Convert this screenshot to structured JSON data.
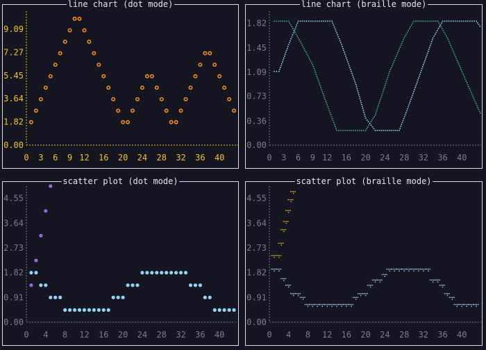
{
  "colors": {
    "background": "#161522",
    "border": "#dcdce4",
    "title": "#e6e6ee",
    "axis_yellow": "#f2c12e",
    "axis_gray": "#7c7c88",
    "orange": "#f08c22",
    "green": "#3fae86",
    "blue": "#8fd4f4",
    "lightblue": "#9fd8f4",
    "purple": "#9a66e2",
    "gold": "#f0b42e"
  },
  "panels": [
    {
      "id": "tl",
      "title": "line chart (dot mode)",
      "mode": "dot",
      "axis_color": "yellow",
      "chart_data": {
        "type": "line",
        "xlim": [
          0,
          44
        ],
        "ylim": [
          0,
          10.5
        ],
        "x_ticks": [
          "0",
          "3",
          "6",
          "9",
          "12",
          "16",
          "20",
          "24",
          "28",
          "32",
          "36",
          "40"
        ],
        "y_ticks": [
          "0.00",
          "1.82",
          "3.64",
          "5.45",
          "7.27",
          "9.09"
        ],
        "series": [
          {
            "color": "orange",
            "marker": "ring",
            "points": [
              [
                1,
                1.8
              ],
              [
                2,
                2.7
              ],
              [
                3,
                3.6
              ],
              [
                4,
                4.5
              ],
              [
                5,
                5.4
              ],
              [
                6,
                6.3
              ],
              [
                7,
                7.2
              ],
              [
                8,
                8.1
              ],
              [
                9,
                9.0
              ],
              [
                10,
                9.9
              ],
              [
                11,
                9.9
              ],
              [
                12,
                9.0
              ],
              [
                13,
                8.1
              ],
              [
                14,
                7.2
              ],
              [
                15,
                6.3
              ],
              [
                16,
                5.4
              ],
              [
                17,
                4.5
              ],
              [
                18,
                3.6
              ],
              [
                19,
                2.7
              ],
              [
                20,
                1.8
              ],
              [
                21,
                1.8
              ],
              [
                22,
                2.7
              ],
              [
                23,
                3.6
              ],
              [
                24,
                4.5
              ],
              [
                25,
                5.4
              ],
              [
                26,
                5.4
              ],
              [
                27,
                4.5
              ],
              [
                28,
                3.6
              ],
              [
                29,
                2.7
              ],
              [
                30,
                1.8
              ],
              [
                31,
                1.8
              ],
              [
                32,
                2.7
              ],
              [
                33,
                3.6
              ],
              [
                34,
                4.5
              ],
              [
                35,
                5.4
              ],
              [
                36,
                6.3
              ],
              [
                37,
                7.2
              ],
              [
                38,
                7.2
              ],
              [
                39,
                6.3
              ],
              [
                40,
                5.4
              ],
              [
                41,
                4.5
              ],
              [
                42,
                3.6
              ],
              [
                43,
                2.7
              ]
            ]
          }
        ]
      }
    },
    {
      "id": "tr",
      "title": "line chart (braille mode)",
      "mode": "braille",
      "axis_color": "gray",
      "chart_data": {
        "type": "line",
        "xlim": [
          0,
          44
        ],
        "ylim": [
          0,
          2.0
        ],
        "x_ticks": [
          "0",
          "3",
          "6",
          "9",
          "12",
          "16",
          "20",
          "24",
          "28",
          "32",
          "36",
          "40"
        ],
        "y_ticks": [
          "0.00",
          "0.36",
          "0.73",
          "1.09",
          "1.45",
          "1.82"
        ],
        "series": [
          {
            "color": "green",
            "points": [
              [
                1,
                1.85
              ],
              [
                4,
                1.85
              ],
              [
                6,
                1.6
              ],
              [
                9,
                1.2
              ],
              [
                12,
                0.6
              ],
              [
                14,
                0.22
              ],
              [
                20,
                0.22
              ],
              [
                22,
                0.45
              ],
              [
                25,
                1.1
              ],
              [
                28,
                1.6
              ],
              [
                30,
                1.85
              ],
              [
                35,
                1.85
              ],
              [
                37,
                1.6
              ],
              [
                40,
                1.1
              ],
              [
                44,
                0.45
              ]
            ]
          },
          {
            "color": "blue",
            "points": [
              [
                1,
                1.1
              ],
              [
                2,
                1.1
              ],
              [
                4,
                1.5
              ],
              [
                6,
                1.85
              ],
              [
                13,
                1.85
              ],
              [
                15,
                1.5
              ],
              [
                18,
                0.9
              ],
              [
                20,
                0.4
              ],
              [
                22,
                0.22
              ],
              [
                27,
                0.22
              ],
              [
                29,
                0.6
              ],
              [
                32,
                1.2
              ],
              [
                34,
                1.6
              ],
              [
                36,
                1.85
              ],
              [
                43,
                1.85
              ],
              [
                44,
                1.75
              ]
            ]
          }
        ]
      }
    },
    {
      "id": "bl",
      "title": "scatter plot (dot mode)",
      "mode": "dot",
      "axis_color": "gray",
      "chart_data": {
        "type": "scatter",
        "xlim": [
          0,
          44
        ],
        "ylim": [
          0,
          5.0
        ],
        "x_ticks": [
          "0",
          "4",
          "8",
          "12",
          "16",
          "20",
          "24",
          "28",
          "32",
          "36",
          "40"
        ],
        "y_ticks": [
          "0.00",
          "0.91",
          "1.82",
          "2.73",
          "3.64",
          "4.55"
        ],
        "series": [
          {
            "color": "blue",
            "marker": "dot",
            "points": [
              [
                1,
                1.82
              ],
              [
                2,
                1.82
              ],
              [
                3,
                1.36
              ],
              [
                4,
                1.36
              ],
              [
                5,
                0.91
              ],
              [
                6,
                0.91
              ],
              [
                7,
                0.91
              ],
              [
                8,
                0.45
              ],
              [
                9,
                0.45
              ],
              [
                10,
                0.45
              ],
              [
                11,
                0.45
              ],
              [
                12,
                0.45
              ],
              [
                13,
                0.45
              ],
              [
                14,
                0.45
              ],
              [
                15,
                0.45
              ],
              [
                16,
                0.45
              ],
              [
                17,
                0.45
              ],
              [
                18,
                0.91
              ],
              [
                19,
                0.91
              ],
              [
                20,
                0.91
              ],
              [
                21,
                1.36
              ],
              [
                22,
                1.36
              ],
              [
                23,
                1.36
              ],
              [
                24,
                1.82
              ],
              [
                25,
                1.82
              ],
              [
                26,
                1.82
              ],
              [
                27,
                1.82
              ],
              [
                28,
                1.82
              ],
              [
                29,
                1.82
              ],
              [
                30,
                1.82
              ],
              [
                31,
                1.82
              ],
              [
                32,
                1.82
              ],
              [
                33,
                1.82
              ],
              [
                34,
                1.36
              ],
              [
                35,
                1.36
              ],
              [
                36,
                1.36
              ],
              [
                37,
                0.91
              ],
              [
                38,
                0.91
              ],
              [
                39,
                0.45
              ],
              [
                40,
                0.45
              ],
              [
                41,
                0.45
              ],
              [
                42,
                0.45
              ],
              [
                43,
                0.45
              ]
            ]
          },
          {
            "color": "purple",
            "marker": "dot",
            "points": [
              [
                1,
                1.36
              ],
              [
                2,
                2.27
              ],
              [
                3,
                3.18
              ],
              [
                4,
                4.09
              ],
              [
                5,
                5.0
              ]
            ]
          }
        ]
      }
    },
    {
      "id": "br",
      "title": "scatter plot (braille mode)",
      "mode": "braille",
      "axis_color": "gray",
      "chart_data": {
        "type": "scatter",
        "xlim": [
          0,
          44
        ],
        "ylim": [
          0,
          5.0
        ],
        "x_ticks": [
          "0",
          "4",
          "8",
          "12",
          "16",
          "20",
          "24",
          "28",
          "32",
          "36",
          "40"
        ],
        "y_ticks": [
          "0.00",
          "0.91",
          "1.82",
          "2.73",
          "3.64",
          "4.55"
        ],
        "series": [
          {
            "color": "lightblue",
            "marker": "braille",
            "points": [
              [
                1,
                1.95
              ],
              [
                2,
                1.95
              ],
              [
                3,
                1.6
              ],
              [
                4,
                1.36
              ],
              [
                5,
                1.05
              ],
              [
                6,
                1.05
              ],
              [
                7,
                0.91
              ],
              [
                8,
                0.65
              ],
              [
                9,
                0.65
              ],
              [
                10,
                0.65
              ],
              [
                11,
                0.65
              ],
              [
                12,
                0.65
              ],
              [
                13,
                0.65
              ],
              [
                14,
                0.65
              ],
              [
                15,
                0.65
              ],
              [
                16,
                0.65
              ],
              [
                17,
                0.65
              ],
              [
                18,
                0.91
              ],
              [
                19,
                1.05
              ],
              [
                20,
                1.05
              ],
              [
                21,
                1.36
              ],
              [
                22,
                1.55
              ],
              [
                23,
                1.55
              ],
              [
                24,
                1.75
              ],
              [
                25,
                1.95
              ],
              [
                26,
                1.95
              ],
              [
                27,
                1.95
              ],
              [
                28,
                1.95
              ],
              [
                29,
                1.95
              ],
              [
                30,
                1.95
              ],
              [
                31,
                1.95
              ],
              [
                32,
                1.95
              ],
              [
                33,
                1.95
              ],
              [
                34,
                1.55
              ],
              [
                35,
                1.55
              ],
              [
                36,
                1.36
              ],
              [
                37,
                1.05
              ],
              [
                38,
                0.91
              ],
              [
                39,
                0.65
              ],
              [
                40,
                0.65
              ],
              [
                41,
                0.65
              ],
              [
                42,
                0.65
              ],
              [
                43,
                0.65
              ]
            ]
          },
          {
            "color": "gold",
            "marker": "braille",
            "points": [
              [
                1,
                2.45
              ],
              [
                2,
                2.45
              ],
              [
                2.5,
                2.9
              ],
              [
                3,
                3.4
              ],
              [
                3.5,
                3.7
              ],
              [
                4,
                4.1
              ],
              [
                4.5,
                4.5
              ],
              [
                5,
                4.8
              ]
            ]
          }
        ]
      }
    }
  ]
}
